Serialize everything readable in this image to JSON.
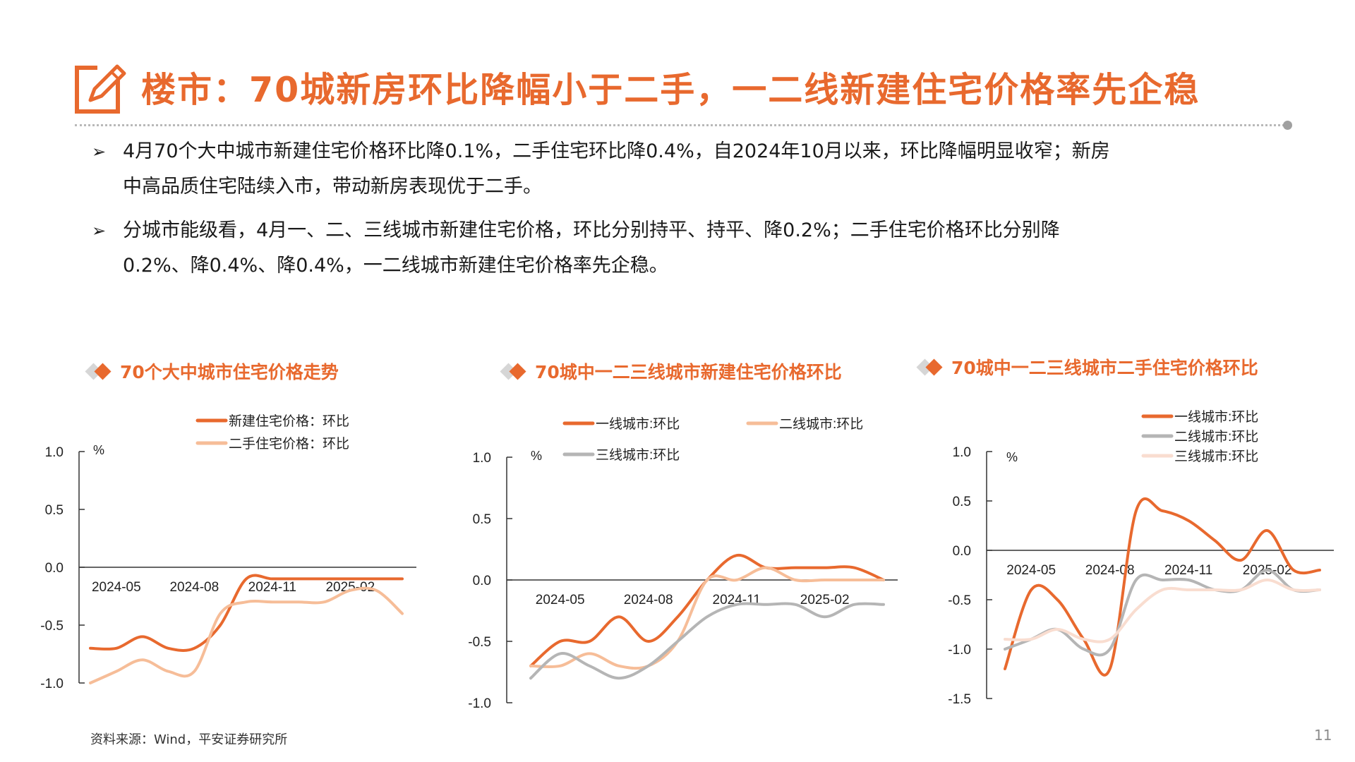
{
  "title": "楼市：70城新房环比降幅小于二手，一二线新建住宅价格率先企稳",
  "bullets": [
    {
      "mark": "➢",
      "lines": [
        "4月70个大中城市新建住宅价格环比降0.1%，二手住宅环比降0.4%，自2024年10月以来，环比降幅明显收窄；新房",
        "中高品质住宅陆续入市，带动新房表现优于二手。"
      ]
    },
    {
      "mark": "➢",
      "lines": [
        "分城市能级看，4月一、二、三线城市新建住宅价格，环比分别持平、持平、降0.2%；二手住宅价格环比分别降",
        "0.2%、降0.4%、降0.4%，一二线城市新建住宅价格率先企稳。"
      ]
    }
  ],
  "chart_data": [
    {
      "type": "line",
      "title": "70个大中城市住宅价格走势",
      "unit": "%",
      "ylim": [
        -1.0,
        1.0
      ],
      "yticks": [
        "1.0",
        "0.5",
        "0.0",
        "-0.5",
        "-1.0"
      ],
      "x": [
        "2024-04",
        "2024-05",
        "2024-06",
        "2024-07",
        "2024-08",
        "2024-09",
        "2024-10",
        "2024-11",
        "2024-12",
        "2025-01",
        "2025-02",
        "2025-03",
        "2025-04"
      ],
      "xticks": [
        "2024-05",
        "2024-08",
        "2024-11",
        "2025-02"
      ],
      "legend": "top",
      "series": [
        {
          "name": "新建住宅价格：环比",
          "color": "#e8692e",
          "values": [
            -0.7,
            -0.7,
            -0.6,
            -0.7,
            -0.7,
            -0.5,
            -0.1,
            -0.1,
            -0.1,
            -0.1,
            -0.1,
            -0.1,
            -0.1
          ]
        },
        {
          "name": "二手住宅价格：环比",
          "color": "#f6bd98",
          "values": [
            -1.0,
            -0.9,
            -0.8,
            -0.9,
            -0.9,
            -0.4,
            -0.3,
            -0.3,
            -0.3,
            -0.3,
            -0.2,
            -0.2,
            -0.4
          ]
        }
      ]
    },
    {
      "type": "line",
      "title": "70城中一二三线城市新建住宅价格环比",
      "unit": "%",
      "ylim": [
        -1.0,
        1.0
      ],
      "yticks": [
        "1.0",
        "0.5",
        "0.0",
        "-0.5",
        "-1.0"
      ],
      "x": [
        "2024-04",
        "2024-05",
        "2024-06",
        "2024-07",
        "2024-08",
        "2024-09",
        "2024-10",
        "2024-11",
        "2024-12",
        "2025-01",
        "2025-02",
        "2025-03",
        "2025-04"
      ],
      "xticks": [
        "2024-05",
        "2024-08",
        "2024-11",
        "2025-02"
      ],
      "legend": "top",
      "series": [
        {
          "name": "一线城市:环比",
          "color": "#e8692e",
          "values": [
            -0.7,
            -0.5,
            -0.5,
            -0.3,
            -0.5,
            -0.3,
            0.0,
            0.2,
            0.1,
            0.1,
            0.1,
            0.1,
            0.0
          ]
        },
        {
          "name": "二线城市:环比",
          "color": "#f6bd98",
          "values": [
            -0.7,
            -0.7,
            -0.6,
            -0.7,
            -0.7,
            -0.5,
            0.0,
            0.0,
            0.1,
            0.0,
            0.0,
            0.0,
            0.0
          ]
        },
        {
          "name": "三线城市:环比",
          "color": "#b5b5b5",
          "values": [
            -0.8,
            -0.6,
            -0.7,
            -0.8,
            -0.7,
            -0.5,
            -0.3,
            -0.2,
            -0.2,
            -0.2,
            -0.3,
            -0.2,
            -0.2
          ]
        }
      ]
    },
    {
      "type": "line",
      "title": "70城中一二三线城市二手住宅价格环比",
      "unit": "%",
      "ylim": [
        -1.5,
        1.0
      ],
      "yticks": [
        "1.0",
        "0.5",
        "0.0",
        "-0.5",
        "-1.0",
        "-1.5"
      ],
      "x": [
        "2024-04",
        "2024-05",
        "2024-06",
        "2024-07",
        "2024-08",
        "2024-09",
        "2024-10",
        "2024-11",
        "2024-12",
        "2025-01",
        "2025-02",
        "2025-03",
        "2025-04"
      ],
      "xticks": [
        "2024-05",
        "2024-08",
        "2024-11",
        "2025-02"
      ],
      "legend": "top",
      "series": [
        {
          "name": "一线城市:环比",
          "color": "#e8692e",
          "values": [
            -1.2,
            -0.4,
            -0.5,
            -0.9,
            -1.2,
            0.4,
            0.4,
            0.3,
            0.1,
            -0.1,
            0.2,
            -0.2,
            -0.2
          ]
        },
        {
          "name": "二线城市:环比",
          "color": "#b5b5b5",
          "values": [
            -1.0,
            -0.9,
            -0.8,
            -1.0,
            -1.0,
            -0.3,
            -0.3,
            -0.3,
            -0.4,
            -0.4,
            -0.2,
            -0.4,
            -0.4
          ]
        },
        {
          "name": "三线城市:环比",
          "color": "#f9ddd0",
          "values": [
            -0.9,
            -0.9,
            -0.8,
            -0.9,
            -0.9,
            -0.6,
            -0.4,
            -0.4,
            -0.4,
            -0.4,
            -0.3,
            -0.4,
            -0.4
          ]
        }
      ]
    }
  ],
  "source": "资料来源：Wind，平安证券研究所",
  "page_number": "11"
}
